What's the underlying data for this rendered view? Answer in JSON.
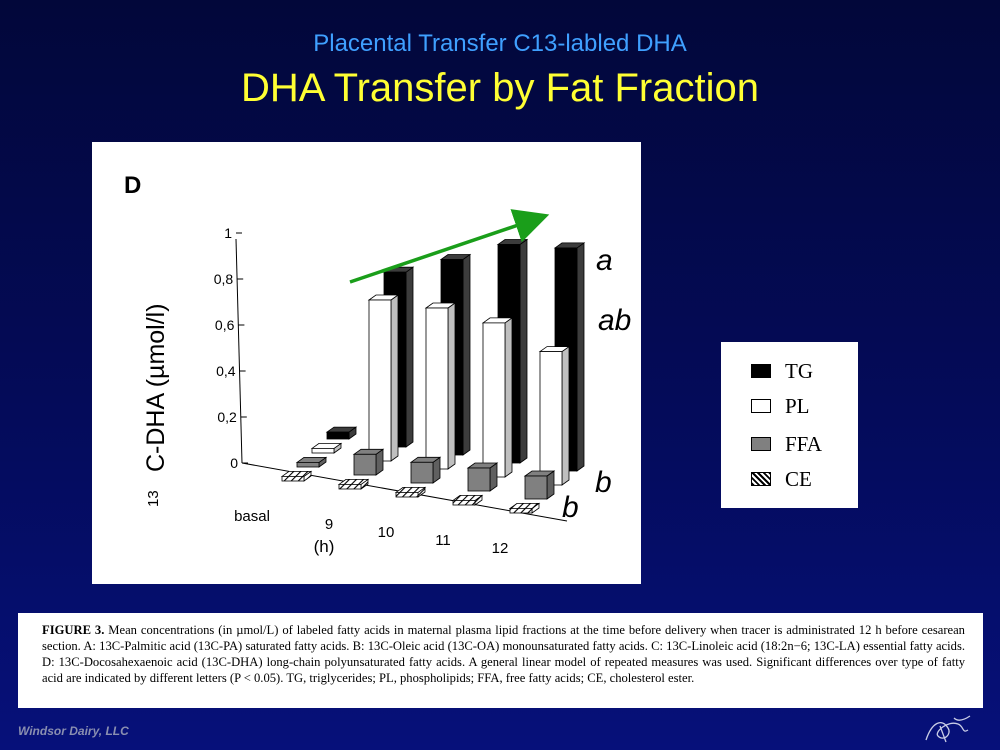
{
  "slide": {
    "subtitle": "Placental Transfer C13-labled DHA",
    "title": "DHA Transfer by Fat Fraction",
    "footer": "Windsor Dairy, LLC"
  },
  "legend": {
    "items": [
      {
        "label": "TG",
        "swatch": "#000000"
      },
      {
        "label": "PL",
        "swatch": "#ffffff"
      },
      {
        "label": "FFA",
        "swatch": "#808080"
      },
      {
        "label": "CE",
        "swatch": "hatched"
      }
    ]
  },
  "chart_data": {
    "type": "bar",
    "panel_label": "D",
    "ylabel_prefix": "13",
    "ylabel": "C-DHA (µmol/l)",
    "xlabel": "(h)",
    "categories": [
      "basal",
      "9",
      "10",
      "11",
      "12"
    ],
    "ylim": [
      0,
      1
    ],
    "yticks": [
      "0",
      "0,2",
      "0,4",
      "0,6",
      "0,8",
      "1"
    ],
    "series": [
      {
        "name": "TG",
        "values": [
          0.03,
          0.76,
          0.85,
          0.95,
          0.97
        ],
        "color": "#000000"
      },
      {
        "name": "PL",
        "values": [
          0.02,
          0.7,
          0.7,
          0.67,
          0.58
        ],
        "color": "#ffffff"
      },
      {
        "name": "FFA",
        "values": [
          0.0,
          0.09,
          0.09,
          0.1,
          0.1
        ],
        "color": "#808080"
      },
      {
        "name": "CE",
        "values": [
          0.0,
          0.01,
          0.01,
          0.01,
          0.01
        ],
        "color": "hatched"
      }
    ],
    "significance_letters": [
      "a",
      "ab",
      "b",
      "b"
    ],
    "annotation": "green arrow indicating increasing TG trend",
    "annotation_color": "#1a9e1a"
  },
  "caption": {
    "label": "FIGURE 3.",
    "text": " Mean concentrations (in µmol/L) of labeled fatty acids in maternal plasma lipid fractions at the time before delivery when tracer is administrated 12 h before cesarean section. A: 13C-Palmitic acid (13C-PA) saturated fatty acids. B: 13C-Oleic acid (13C-OA) monounsaturated fatty acids. C: 13C-Linoleic acid (18:2n−6; 13C-LA) essential fatty acids. D: 13C-Docosahexaenoic acid (13C-DHA) long-chain polyunsaturated fatty acids. A general linear model of repeated measures was used. Significant differences over type of fatty acid are indicated by different letters (P < 0.05). TG, triglycerides; PL, phospholipids; FFA, free fatty acids; CE, cholesterol ester."
  }
}
